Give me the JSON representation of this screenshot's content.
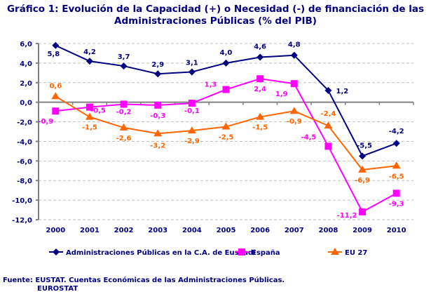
{
  "chart_data": {
    "type": "line",
    "title_line1": "Gráfico 1: Evolución de la Capacidad (+) o Necesidad (-) de financiación de las",
    "title_line2": "Administraciones Públicas (% del PIB)",
    "categories": [
      "2000",
      "2001",
      "2002",
      "2003",
      "2004",
      "2005",
      "2006",
      "2007",
      "2008",
      "2009",
      "2010"
    ],
    "ylim": [
      -12,
      6
    ],
    "yticks": [
      "6,0",
      "4,0",
      "2,0",
      "0,0",
      "-2,0",
      "-4,0",
      "-6,0",
      "-8,0",
      "-10,0",
      "-12,0"
    ],
    "ytick_values": [
      6,
      4,
      2,
      0,
      -2,
      -4,
      -6,
      -8,
      -10,
      -12
    ],
    "grid": "horizontal dashed",
    "legend_position": "bottom",
    "series": [
      {
        "name": "Administraciones Públicas en la C.A. de Euskadi",
        "color": "#000080",
        "marker": "diamond",
        "values": [
          5.8,
          4.2,
          3.7,
          2.9,
          3.1,
          4.0,
          4.6,
          4.8,
          1.2,
          -5.5,
          -4.2
        ],
        "labels": [
          "5,8",
          "4,2",
          "3,7",
          "2,9",
          "3,1",
          "4,0",
          "4,6",
          "4,8",
          "1,2",
          "-5,5",
          "-4,2"
        ]
      },
      {
        "name": "España",
        "color": "#FF00FF",
        "marker": "square",
        "values": [
          -0.9,
          -0.5,
          -0.2,
          -0.3,
          -0.1,
          1.3,
          2.4,
          1.9,
          -4.5,
          -11.2,
          -9.3
        ],
        "labels": [
          "-0,9",
          "-0,5",
          "-0,2",
          "-0,3",
          "-0,1",
          "1,3",
          "2,4",
          "1,9",
          "-4,5",
          "-11,2",
          "-9,3"
        ]
      },
      {
        "name": "EU 27",
        "color": "#FF6600",
        "marker": "triangle",
        "values": [
          0.6,
          -1.5,
          -2.6,
          -3.2,
          -2.9,
          -2.5,
          -1.5,
          -0.9,
          -2.4,
          -6.9,
          -6.5
        ],
        "labels": [
          "0,6",
          "-1,5",
          "-2,6",
          "-3,2",
          "-2,9",
          "-2,5",
          "-1,5",
          "-0,9",
          "-2,4",
          "-6,9",
          "-6,5"
        ]
      }
    ]
  },
  "source": {
    "line1": "Fuente: EUSTAT. Cuentas Económicas de las Administraciones Públicas.",
    "line2": "EUROSTAT"
  }
}
